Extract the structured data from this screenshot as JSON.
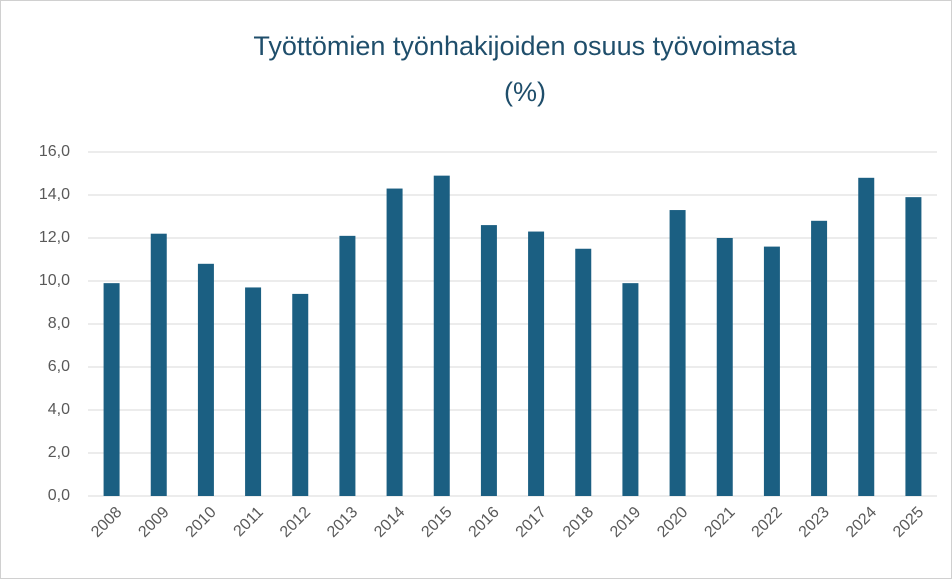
{
  "chart_data": {
    "type": "bar",
    "title": [
      "Työttömien työnhakijoiden osuus työvoimasta",
      "(%)"
    ],
    "categories": [
      "2008",
      "2009",
      "2010",
      "2011",
      "2012",
      "2013",
      "2014",
      "2015",
      "2016",
      "2017",
      "2018",
      "2019",
      "2020",
      "2021",
      "2022",
      "2023",
      "2024",
      "2025"
    ],
    "values": [
      9.9,
      12.2,
      10.8,
      9.7,
      9.4,
      12.1,
      14.3,
      14.9,
      12.6,
      12.3,
      11.5,
      9.9,
      13.3,
      12.0,
      11.6,
      12.8,
      14.8,
      13.9
    ],
    "color": "#1b5f82",
    "ylim": [
      0,
      16
    ],
    "yticks": [
      {
        "value": 0,
        "label": "0,0"
      },
      {
        "value": 2,
        "label": "2,0"
      },
      {
        "value": 4,
        "label": "4,0"
      },
      {
        "value": 6,
        "label": "6,0"
      },
      {
        "value": 8,
        "label": "8,0"
      },
      {
        "value": 10,
        "label": "10,0"
      },
      {
        "value": 12,
        "label": "12,0"
      },
      {
        "value": 14,
        "label": "14,0"
      },
      {
        "value": 16,
        "label": "16,0"
      }
    ],
    "grid": true
  }
}
